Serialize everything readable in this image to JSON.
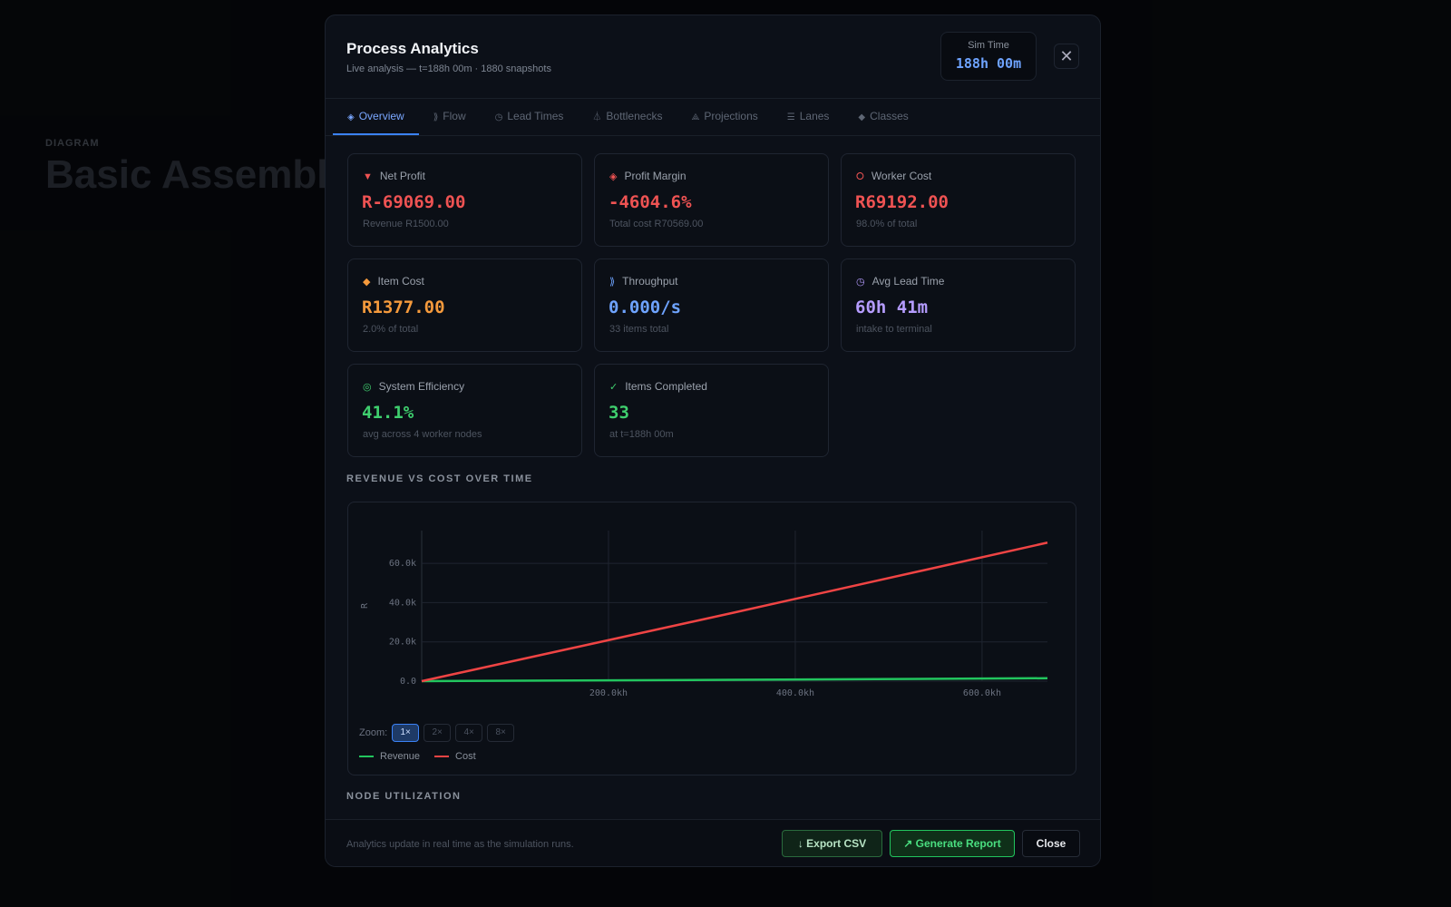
{
  "background": {
    "label": "DIAGRAM",
    "title": "Basic Assembly Line"
  },
  "modal": {
    "title": "Process Analytics",
    "subtitle": "Live analysis — t=188h 00m · 1880 snapshots",
    "sim_time": {
      "label": "Sim Time",
      "value": "188h 00m"
    },
    "tabs": [
      {
        "icon": "◈",
        "label": "Overview"
      },
      {
        "icon": "⟫",
        "label": "Flow"
      },
      {
        "icon": "◷",
        "label": "Lead Times"
      },
      {
        "icon": "⏃",
        "label": "Bottlenecks"
      },
      {
        "icon": "⟁",
        "label": "Projections"
      },
      {
        "icon": "☰",
        "label": "Lanes"
      },
      {
        "icon": "◆",
        "label": "Classes"
      }
    ],
    "cards": [
      {
        "icon": "▼",
        "label": "Net Profit",
        "value": "R-69069.00",
        "note": "Revenue R1500.00",
        "color": "#ef5353"
      },
      {
        "icon": "◈",
        "label": "Profit Margin",
        "value": "-4604.6%",
        "note": "Total cost R70569.00",
        "color": "#ef5353"
      },
      {
        "icon": "⭘",
        "label": "Worker Cost",
        "value": "R69192.00",
        "note": "98.0% of total",
        "color": "#ef5353"
      },
      {
        "icon": "◆",
        "label": "Item Cost",
        "value": "R1377.00",
        "note": "2.0% of total",
        "color": "#f59a3c"
      },
      {
        "icon": "⟫",
        "label": "Throughput",
        "value": "0.000/s",
        "note": "33 items total",
        "color": "#6ea3ff"
      },
      {
        "icon": "◷",
        "label": "Avg Lead Time",
        "value": "60h 41m",
        "note": "intake to terminal",
        "color": "#b59cff"
      },
      {
        "icon": "◎",
        "label": "System Efficiency",
        "value": "41.1%",
        "note": "avg across 4 worker nodes",
        "color": "#3fcf6e"
      },
      {
        "icon": "✓",
        "label": "Items Completed",
        "value": "33",
        "note": "at t=188h 00m",
        "color": "#3fcf6e"
      }
    ],
    "chart_section": "REVENUE VS COST OVER TIME",
    "zoom": {
      "label": "Zoom:",
      "options": [
        "1×",
        "2×",
        "4×",
        "8×"
      ]
    },
    "node_section": "NODE UTILIZATION",
    "footer": {
      "note": "Analytics update in real time as the simulation runs.",
      "buttons": [
        "↓ Export CSV",
        "↗ Generate Report",
        "Close"
      ]
    }
  },
  "chart_data": {
    "type": "line",
    "ylabel": "R",
    "x": [
      0,
      335000,
      670000
    ],
    "series": [
      {
        "name": "Revenue",
        "color": "#22c55e",
        "values": [
          0,
          700,
          1500
        ]
      },
      {
        "name": "Cost",
        "color": "#ef4444",
        "values": [
          0,
          35000,
          70569
        ]
      }
    ],
    "xlim": [
      0,
      670000
    ],
    "xticks": [
      {
        "value": 200000,
        "label": "200.0kh"
      },
      {
        "value": 400000,
        "label": "400.0kh"
      },
      {
        "value": 600000,
        "label": "600.0kh"
      }
    ],
    "ylim": [
      0,
      76700
    ],
    "yticks": [
      {
        "value": 0,
        "label": "0.0"
      },
      {
        "value": 20000,
        "label": "20.0k"
      },
      {
        "value": 40000,
        "label": "40.0k"
      },
      {
        "value": 60000,
        "label": "60.0k"
      }
    ],
    "grid": true
  }
}
